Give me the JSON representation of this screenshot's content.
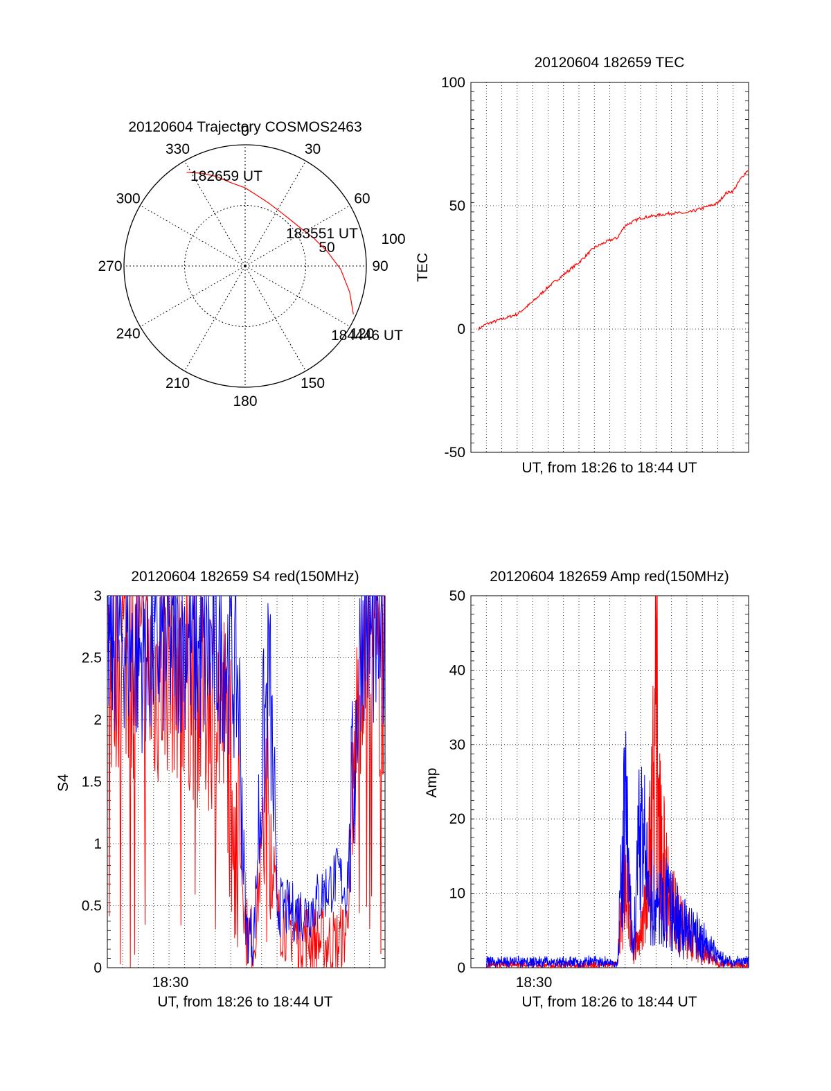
{
  "polar": {
    "title": "20120604 Trajectory COSMOS2463",
    "azimuth_labels": [
      "0",
      "30",
      "60",
      "90",
      "120",
      "150",
      "180",
      "210",
      "240",
      "270",
      "300",
      "330"
    ],
    "radial_labels": [
      "50",
      "100"
    ],
    "annotations": [
      "182659 UT",
      "183551 UT",
      "184446 UT"
    ],
    "trajectory": {
      "color": "#ff0000",
      "points_az_el": [
        [
          328,
          8
        ],
        [
          335,
          14
        ],
        [
          342,
          20
        ],
        [
          350,
          27
        ],
        [
          0,
          32
        ],
        [
          10,
          37
        ],
        [
          20,
          40
        ],
        [
          32,
          42
        ],
        [
          44,
          42
        ],
        [
          56,
          40
        ],
        [
          68,
          35
        ],
        [
          80,
          28
        ],
        [
          92,
          19
        ],
        [
          104,
          10
        ],
        [
          114,
          2
        ]
      ]
    }
  },
  "chart_data": [
    {
      "type": "line",
      "title": "20120604 182659 TEC",
      "xlabel": "UT, from 18:26 to 18:44 UT",
      "ylabel": "TEC",
      "ylim": [
        -50,
        100
      ],
      "yticks": [
        "100",
        "50",
        "0",
        "-50"
      ],
      "grid": true,
      "series": [
        {
          "color": "#ff0000",
          "x_min": [
            0.5,
            1.0,
            2.0,
            3.0,
            4.0,
            5.0,
            6.0,
            7.0,
            8.0,
            9.0,
            9.5,
            10.0,
            11.0,
            12.0,
            13.0,
            14.0,
            15.0,
            16.0,
            16.5,
            17.0,
            17.5,
            18.0
          ],
          "values": [
            0,
            2,
            4,
            6,
            11,
            17,
            22,
            27,
            33,
            36,
            37,
            42,
            45,
            46,
            47,
            47,
            49,
            51,
            55,
            56,
            61,
            65
          ]
        }
      ]
    },
    {
      "type": "line",
      "title": "20120604 182659 S4 red(150MHz)",
      "xlabel": "UT, from 18:26 to 18:44 UT",
      "ylabel": "S4",
      "ylim": [
        0,
        3
      ],
      "yticks": [
        "3",
        "2.5",
        "2",
        "1.5",
        "1",
        "0.5",
        "0"
      ],
      "xticks": [
        {
          "x_min": 4.0,
          "label": "18:30"
        }
      ],
      "grid": true,
      "series": [
        {
          "color": "#ff0000",
          "x_min": [
            0,
            1,
            2,
            3,
            4,
            5,
            6,
            7,
            8,
            8.5,
            9.0,
            9.5,
            10.0,
            10.5,
            11,
            12,
            13,
            14,
            15,
            15.5,
            16.0,
            16.5,
            17,
            18
          ],
          "values": [
            2.3,
            2.6,
            2.4,
            2.3,
            2.5,
            2.4,
            2.2,
            2.2,
            1.8,
            1.2,
            0.3,
            0.2,
            0.9,
            1.5,
            0.4,
            0.3,
            0.25,
            0.2,
            0.2,
            0.3,
            1.5,
            2.7,
            2.5,
            2.4
          ]
        },
        {
          "color": "#0000ff",
          "x_min": [
            0,
            1,
            2,
            3,
            4,
            5,
            6,
            7,
            8,
            8.5,
            9.0,
            9.5,
            10.0,
            10.5,
            11,
            12,
            13,
            14,
            15,
            15.5,
            16.0,
            16.5,
            17,
            18
          ],
          "values": [
            2.6,
            2.7,
            2.5,
            2.6,
            2.6,
            2.7,
            2.5,
            2.6,
            2.5,
            2.3,
            0.3,
            0.25,
            1.6,
            2.4,
            0.5,
            0.45,
            0.45,
            0.6,
            0.75,
            0.6,
            1.6,
            2.8,
            2.7,
            2.6
          ]
        }
      ]
    },
    {
      "type": "line",
      "title": "20120604 182659 Amp red(150MHz)",
      "xlabel": "UT, from 18:26 to 18:44 UT",
      "ylabel": "Amp",
      "ylim": [
        0,
        50
      ],
      "yticks": [
        "50",
        "40",
        "30",
        "20",
        "10",
        "0"
      ],
      "xticks": [
        {
          "x_min": 4.0,
          "label": "18:30"
        }
      ],
      "grid": true,
      "series": [
        {
          "color": "#ff0000",
          "x_min": [
            1,
            2,
            4,
            6,
            8,
            9.5,
            10.0,
            10.5,
            11.0,
            11.5,
            12.0,
            12.5,
            13.0,
            13.5,
            14.0,
            15.0,
            16.0,
            17.0,
            18.0
          ],
          "values": [
            0.5,
            0.5,
            0.5,
            0.5,
            0.5,
            0.5,
            20,
            3,
            6,
            15,
            45,
            18,
            12,
            8,
            6,
            3,
            1,
            0.5,
            0.5
          ]
        },
        {
          "color": "#0000ff",
          "x_min": [
            1,
            2,
            4,
            6,
            8,
            9.5,
            10.0,
            10.5,
            11.0,
            11.5,
            12.0,
            12.5,
            13.0,
            13.5,
            14.0,
            15.0,
            16.0,
            17.0,
            18.0
          ],
          "values": [
            1,
            1,
            1,
            1,
            1,
            1,
            28,
            2,
            26,
            14,
            10,
            12,
            10,
            8,
            7,
            5,
            2,
            1,
            1
          ]
        }
      ]
    }
  ]
}
